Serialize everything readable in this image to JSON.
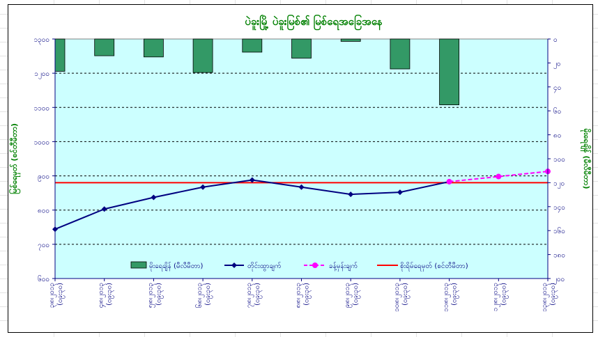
{
  "chart_data": {
    "type": "bar+line",
    "title": "ပဲခူးမြို့ ပဲခူးမြစ်၏ မြစ်ရေအခြေအနေ",
    "ylabel_left": "မြစ်ရေမှတ် (စင်တီမီတာ)",
    "ylabel_right": "မိုးရေချိန် (မီလီမီတာ)",
    "left_ticks": [
      "၆၀၀",
      "၇၀၀",
      "၈၀၀",
      "၉၀၀",
      "၁၀၀၀",
      "၁၁၀၀",
      "၁၂၀၀",
      "၁၃၀၀"
    ],
    "right_ticks": [
      "၀",
      "၂၀",
      "၄၀",
      "၆၀",
      "၈၀",
      "၁၀၀",
      "၁၂၀",
      "၁၄၀",
      "၁၆၀",
      "၁၈၀",
      "၂၀၀"
    ],
    "ylim_left": [
      600,
      1300
    ],
    "ylim_right": [
      0,
      200
    ],
    "categories": [
      {
        "date": "၃၊၈၊၂၀၁၃",
        "time": "(၀၉း၃၀)"
      },
      {
        "date": "၄၊၈၊၂၀၁၃",
        "time": "(၀၉း၃၀)"
      },
      {
        "date": "၅၊၈၊၂၀၁၃",
        "time": "(၀၉း၃၀)"
      },
      {
        "date": "၆၊၈၊၂၀၁၃",
        "time": "(၀၉း၃၀)"
      },
      {
        "date": "၇၊၈၊၂၀၁၃",
        "time": "(၀၉း၃၀)"
      },
      {
        "date": "၈၊၈၊၂၀၁၃",
        "time": "(၀၉း၃၀)"
      },
      {
        "date": "၉၊၈၊၂၀၁၃",
        "time": "(၀၉း၃၀)"
      },
      {
        "date": "၁၀၊၈၊၂၀၁၃",
        "time": "(၀၉း၃၀)"
      },
      {
        "date": "၁၁၊၈၊၂၀၁၃",
        "time": "(၀၉း၃၀)"
      },
      {
        "date": "၁၂၊၈၊၂၀၁၃",
        "time": "(၀၉း၃၀)"
      },
      {
        "date": "၁၃၊၈၊၂၀၁၃",
        "time": "(၀၉း၃၀)"
      }
    ],
    "series": [
      {
        "name": "မိုးရေချိန် (မီလီမီတာ)",
        "kind": "bar",
        "axis": "right",
        "color": "#339966",
        "values": [
          27,
          14,
          15,
          28,
          11,
          16,
          2,
          25,
          55,
          null,
          null
        ]
      },
      {
        "name": "တိုင်းထွာချက်",
        "kind": "line",
        "axis": "left",
        "color": "#000080",
        "marker": "diamond",
        "values": [
          744,
          803,
          837,
          867,
          888,
          867,
          846,
          852,
          883,
          null,
          null
        ]
      },
      {
        "name": "ခန့်မှန်းချက်",
        "kind": "line-dashed",
        "axis": "left",
        "color": "#ff00ff",
        "marker": "circle",
        "values": [
          null,
          null,
          null,
          null,
          null,
          null,
          null,
          null,
          883,
          898,
          913
        ]
      },
      {
        "name": "စိုးရိမ်ရေမှတ် (စင်တီမီတာ)",
        "kind": "hline",
        "axis": "left",
        "color": "#ff0000",
        "value": 880
      }
    ],
    "grid": "horizontal dashed",
    "legend_position": "bottom-inside"
  },
  "colors": {
    "plot_bg": "#ccffff",
    "title": "#008000",
    "ticks": "#000080"
  }
}
